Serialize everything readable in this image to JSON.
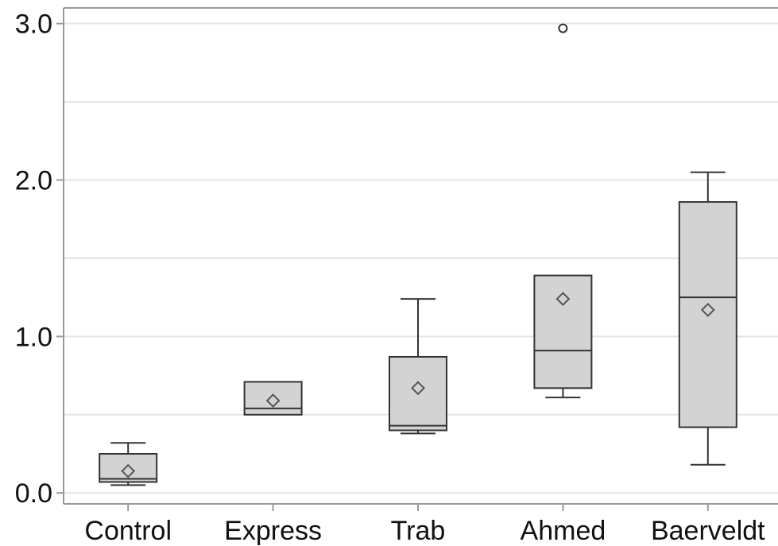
{
  "chart_data": {
    "type": "boxplot",
    "title": "",
    "xlabel": "",
    "ylabel": "",
    "ylim": [
      -0.07,
      3.1
    ],
    "yticks": [
      "0.0",
      "1.0",
      "2.0",
      "3.0"
    ],
    "ytick_values": [
      0,
      1,
      2,
      3
    ],
    "minor_gridlines": [
      0.5,
      1.5,
      2.5
    ],
    "grid": true,
    "categories": [
      "Control",
      "Express",
      "Trab",
      "Ahmed",
      "Baerveldt"
    ],
    "boxes": [
      {
        "category": "Control",
        "whisker_low": 0.05,
        "q1": 0.07,
        "median": 0.09,
        "q3": 0.25,
        "whisker_high": 0.32,
        "mean": 0.14,
        "outliers": []
      },
      {
        "category": "Express",
        "whisker_low": 0.5,
        "q1": 0.5,
        "median": 0.54,
        "q3": 0.71,
        "whisker_high": 0.71,
        "mean": 0.59,
        "outliers": []
      },
      {
        "category": "Trab",
        "whisker_low": 0.38,
        "q1": 0.4,
        "median": 0.43,
        "q3": 0.87,
        "whisker_high": 1.24,
        "mean": 0.67,
        "outliers": []
      },
      {
        "category": "Ahmed",
        "whisker_low": 0.61,
        "q1": 0.67,
        "median": 0.91,
        "q3": 1.39,
        "whisker_high": 1.39,
        "mean": 1.24,
        "outliers": [
          2.97
        ]
      },
      {
        "category": "Baerveldt",
        "whisker_low": 0.18,
        "q1": 0.42,
        "median": 1.25,
        "q3": 1.86,
        "whisker_high": 2.05,
        "mean": 1.17,
        "outliers": []
      }
    ],
    "colors": {
      "box_fill": "#d3d3d3",
      "box_stroke": "#333333",
      "mean_marker": "#555555",
      "outlier": "#333333",
      "grid": "#e3e3e3",
      "axis": "#999999"
    }
  }
}
